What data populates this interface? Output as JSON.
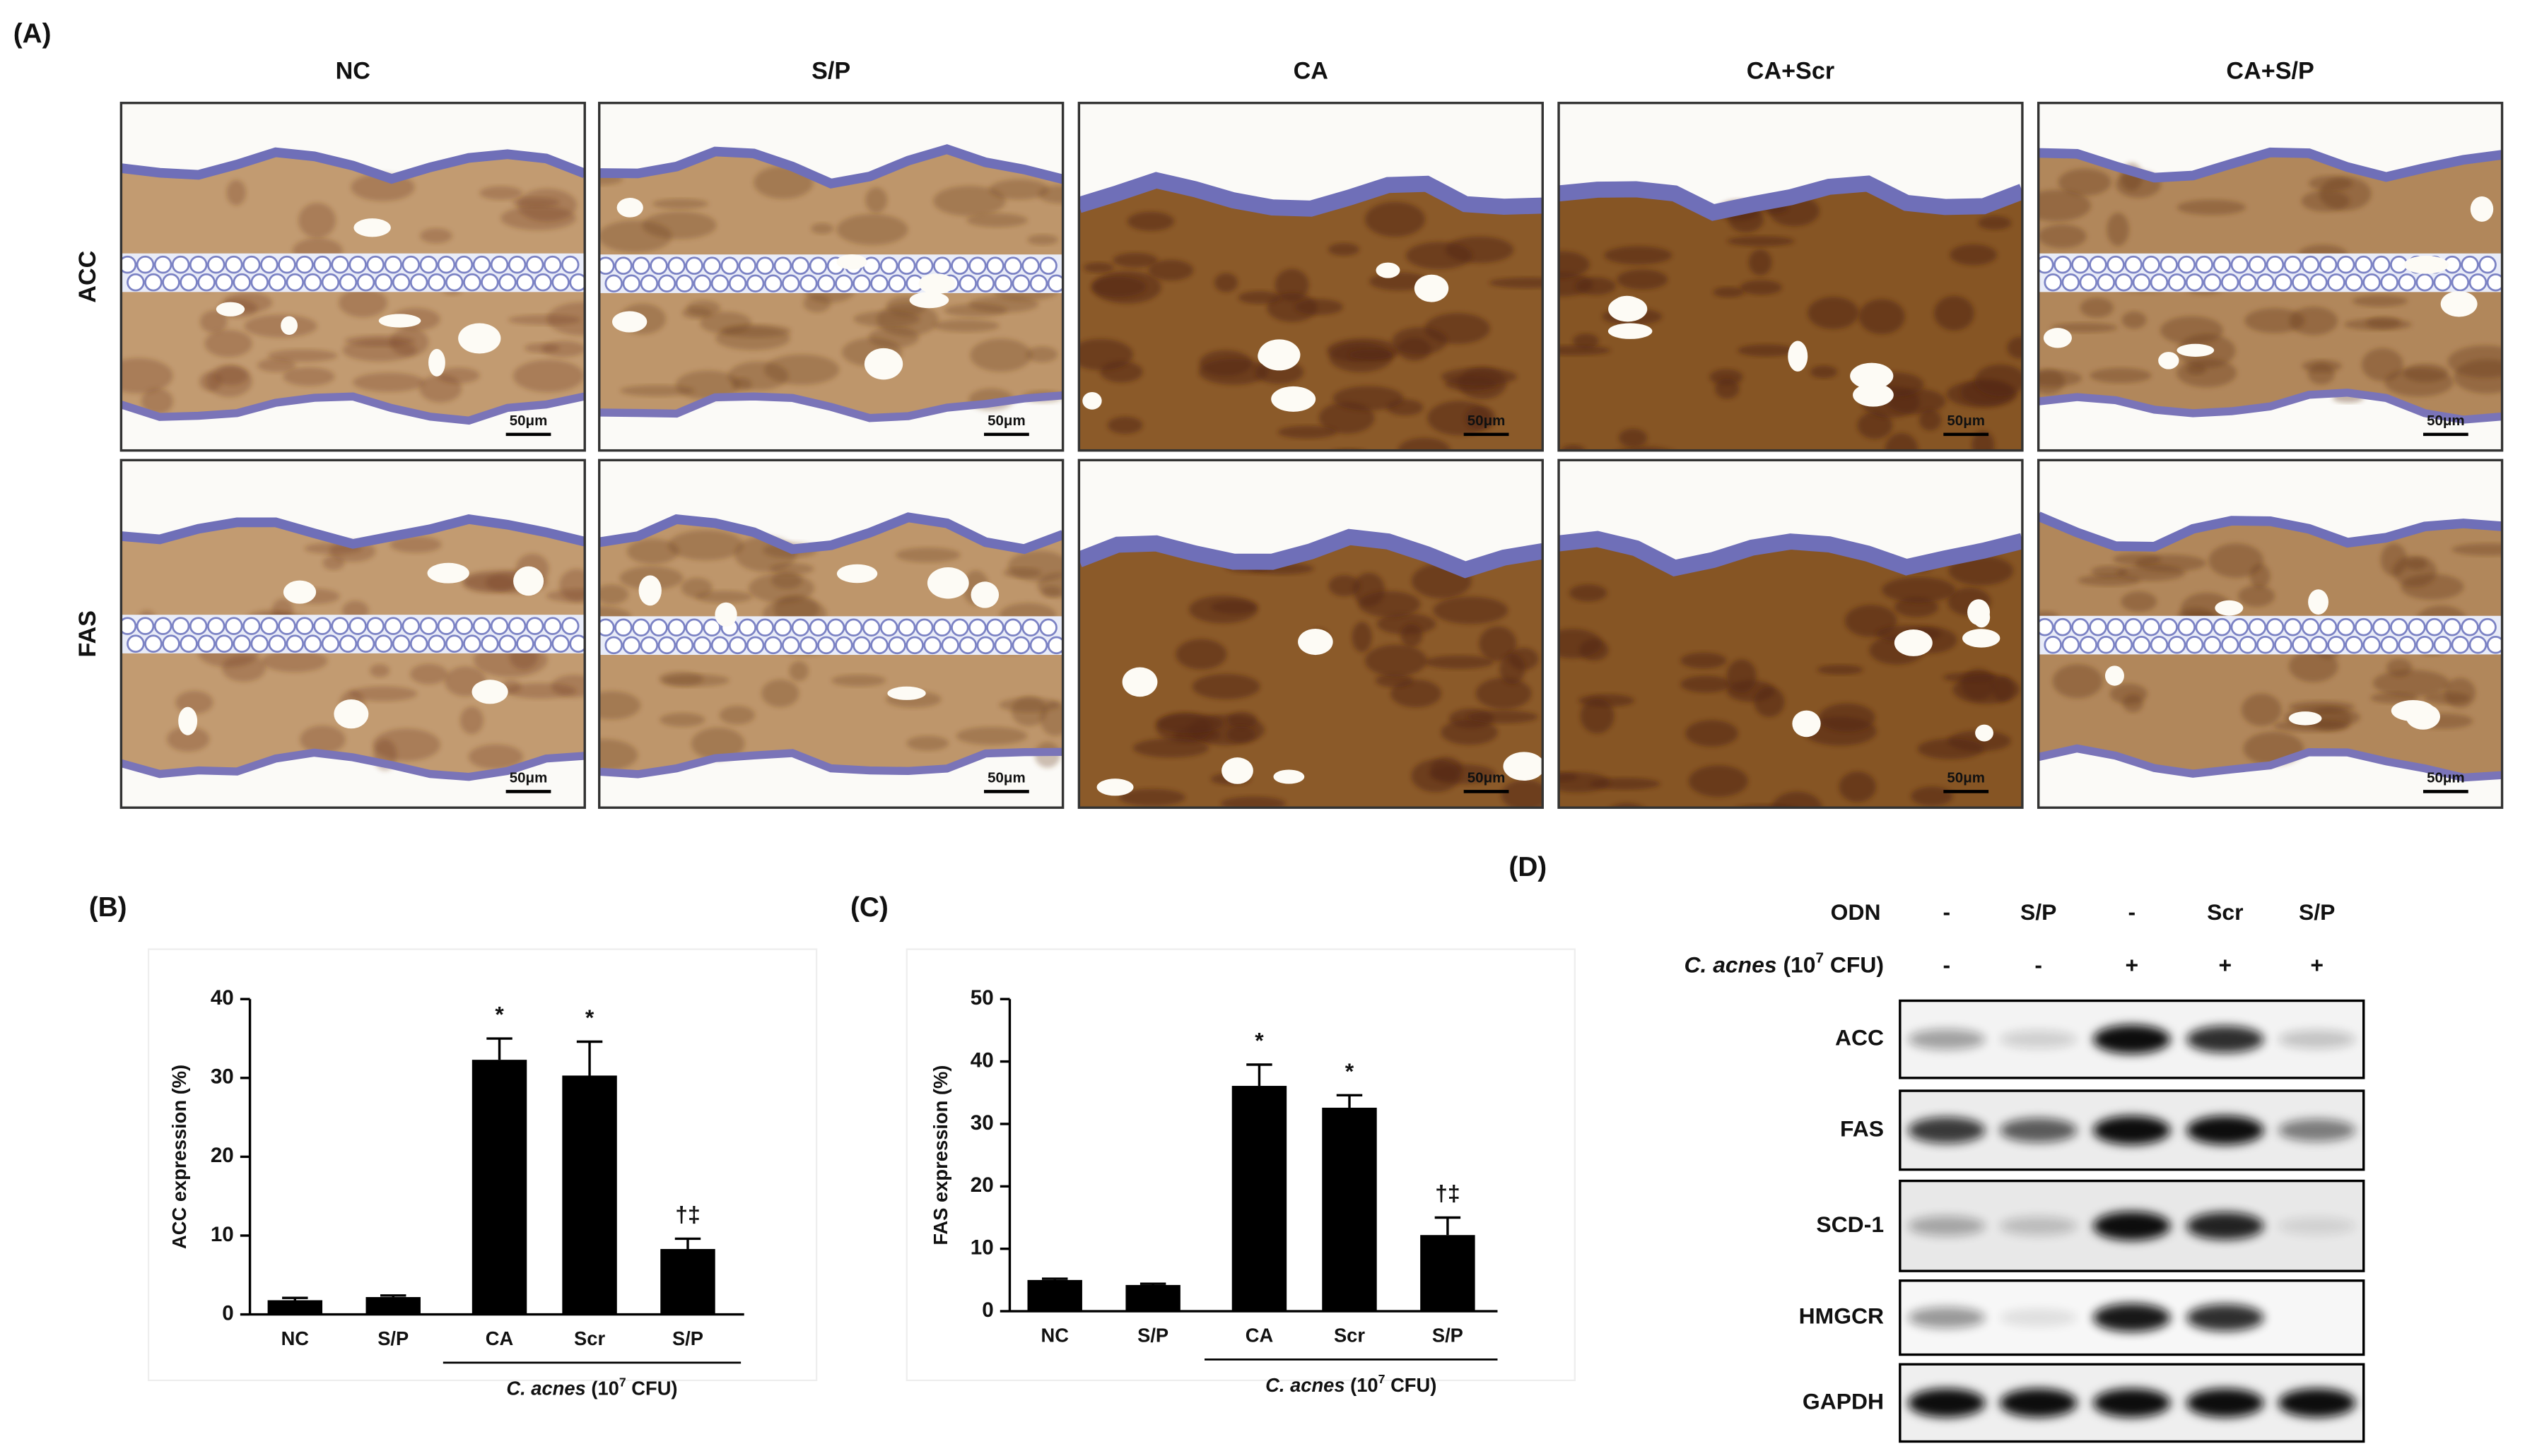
{
  "panel_a": {
    "label": "(A)",
    "columns": [
      "NC",
      "S/P",
      "CA",
      "CA+Scr",
      "CA+S/P"
    ],
    "rows": [
      "ACC",
      "FAS"
    ],
    "scale_bar": "50μm"
  },
  "chart_data": [
    {
      "type": "bar",
      "panel_label": "(B)",
      "y_label": "ACC expression (%)",
      "categories": [
        "NC",
        "S/P",
        "CA",
        "Scr",
        "S/P"
      ],
      "values": [
        1.8,
        2.2,
        32.3,
        30.3,
        8.3
      ],
      "errors": [
        0.3,
        0.2,
        2.7,
        4.3,
        1.3
      ],
      "annotations": [
        null,
        null,
        "*",
        "*",
        "†‡"
      ],
      "group_label": [
        "C. acnes",
        " (10",
        "7",
        " CFU)"
      ],
      "color": "#000000",
      "ylim": [
        0,
        40
      ],
      "yticks": [
        0,
        10,
        20,
        30,
        40
      ]
    },
    {
      "type": "bar",
      "panel_label": "(C)",
      "y_label": "FAS expression (%)",
      "categories": [
        "NC",
        "S/P",
        "CA",
        "Scr",
        "S/P"
      ],
      "values": [
        5.0,
        4.2,
        36.1,
        32.6,
        12.2
      ],
      "errors": [
        0.2,
        0.2,
        3.4,
        2.0,
        2.8
      ],
      "annotations": [
        null,
        null,
        "*",
        "*",
        "†‡"
      ],
      "group_label": [
        "C. acnes",
        " (10",
        "7",
        " CFU)"
      ],
      "color": "#000000",
      "ylim": [
        0,
        50
      ],
      "yticks": [
        0,
        10,
        20,
        30,
        40,
        50
      ]
    }
  ],
  "panel_d": {
    "label": "(D)",
    "odn_label": "ODN",
    "odn": [
      "-",
      "S/P",
      "-",
      "Scr",
      "S/P"
    ],
    "cacnes_label": [
      "C. acnes",
      " (10",
      "7",
      " CFU)"
    ],
    "cacnes": [
      "-",
      "-",
      "+",
      "+",
      "+"
    ],
    "blots": [
      "ACC",
      "FAS",
      "SCD-1",
      "HMGCR",
      "GAPDH"
    ]
  }
}
